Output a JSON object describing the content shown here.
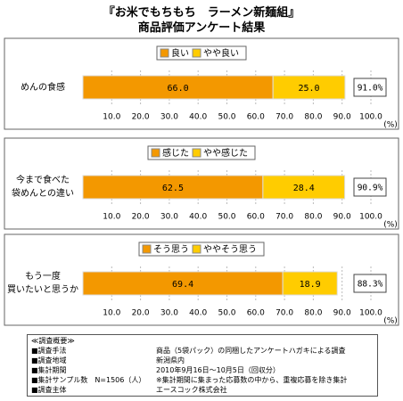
{
  "title": [
    "『お米でもちもち　ラーメン新麺組』",
    "商品評価アンケート結果"
  ],
  "chart_data": [
    {
      "type": "bar",
      "orientation": "horizontal",
      "stacked": true,
      "categories": [
        "めんの食感"
      ],
      "series": [
        {
          "name": "良い",
          "color": "#f39800",
          "values": [
            66.0
          ],
          "value_labels": [
            "66.0"
          ]
        },
        {
          "name": "やや良い",
          "color": "#ffcc00",
          "values": [
            25.0
          ],
          "value_labels": [
            "25.0"
          ]
        }
      ],
      "totals": [
        91.0
      ],
      "total_labels": [
        "91.0%"
      ],
      "xlim": [
        0,
        100
      ],
      "xticks": [
        {
          "value": 10,
          "label": "10.0"
        },
        {
          "value": 20,
          "label": "20.0"
        },
        {
          "value": 30,
          "label": "30.0"
        },
        {
          "value": 40,
          "label": "40.0"
        },
        {
          "value": 50,
          "label": "50.0"
        },
        {
          "value": 60,
          "label": "60.0"
        },
        {
          "value": 70,
          "label": "70.0"
        },
        {
          "value": 80,
          "label": "80.0"
        },
        {
          "value": 90,
          "label": "90.0"
        },
        {
          "value": 100,
          "label": "100.0"
        }
      ],
      "unit_label": "(%)",
      "legend": "top",
      "grid": true
    },
    {
      "type": "bar",
      "orientation": "horizontal",
      "stacked": true,
      "categories": [
        "今まで食べた\n袋めんとの違い"
      ],
      "series": [
        {
          "name": "感じた",
          "color": "#f39800",
          "values": [
            62.5
          ],
          "value_labels": [
            "62.5"
          ]
        },
        {
          "name": "やや感じた",
          "color": "#ffcc00",
          "values": [
            28.4
          ],
          "value_labels": [
            "28.4"
          ]
        }
      ],
      "totals": [
        90.9
      ],
      "total_labels": [
        "90.9%"
      ],
      "xlim": [
        0,
        100
      ],
      "xticks": [
        {
          "value": 10,
          "label": "10.0"
        },
        {
          "value": 20,
          "label": "20.0"
        },
        {
          "value": 30,
          "label": "30.0"
        },
        {
          "value": 40,
          "label": "40.0"
        },
        {
          "value": 50,
          "label": "50.0"
        },
        {
          "value": 60,
          "label": "60.0"
        },
        {
          "value": 70,
          "label": "70.0"
        },
        {
          "value": 80,
          "label": "80.0"
        },
        {
          "value": 90,
          "label": "90.0"
        },
        {
          "value": 100,
          "label": "100.0"
        }
      ],
      "unit_label": "(%)",
      "legend": "top",
      "grid": true
    },
    {
      "type": "bar",
      "orientation": "horizontal",
      "stacked": true,
      "categories": [
        "もう一度\n買いたいと思うか"
      ],
      "series": [
        {
          "name": "そう思う",
          "color": "#f39800",
          "values": [
            69.4
          ],
          "value_labels": [
            "69.4"
          ]
        },
        {
          "name": "ややそう思う",
          "color": "#ffcc00",
          "values": [
            18.9
          ],
          "value_labels": [
            "18.9"
          ]
        }
      ],
      "totals": [
        88.3
      ],
      "total_labels": [
        "88.3%"
      ],
      "xlim": [
        0,
        100
      ],
      "xticks": [
        {
          "value": 10,
          "label": "10.0"
        },
        {
          "value": 20,
          "label": "20.0"
        },
        {
          "value": 30,
          "label": "30.0"
        },
        {
          "value": 40,
          "label": "40.0"
        },
        {
          "value": 50,
          "label": "50.0"
        },
        {
          "value": 60,
          "label": "60.0"
        },
        {
          "value": 70,
          "label": "70.0"
        },
        {
          "value": 80,
          "label": "80.0"
        },
        {
          "value": 90,
          "label": "90.0"
        },
        {
          "value": 100,
          "label": "100.0"
        }
      ],
      "unit_label": "(%)",
      "legend": "top",
      "grid": true
    }
  ],
  "survey": {
    "heading": "≪調査概要≫",
    "rows": [
      [
        "■調査手法",
        "商品（5袋パック）の同梱したアンケートハガキによる調査"
      ],
      [
        "■調査地域",
        "新潟県内"
      ],
      [
        "■集計期間",
        "2010年9月16日～10月5日（回収分）"
      ],
      [
        "■集計サンプル数　N=1506（人）",
        "※集計期間に集まった応募数の中から、重複応募を除き集計"
      ],
      [
        "■調査主体",
        "エースコック株式会社"
      ]
    ]
  }
}
